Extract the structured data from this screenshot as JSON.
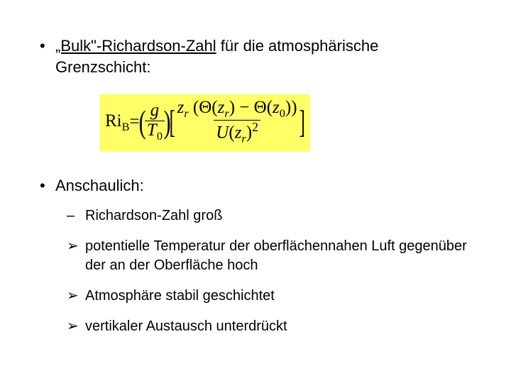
{
  "slide": {
    "background_color": "#ffffff",
    "text_color": "#000000",
    "bullet1": {
      "marker": "•",
      "underlined": "„Bulk\"-Richardson-Zahl",
      "rest": " für die atmosphärische Grenzschicht:"
    },
    "formula": {
      "background_color": "#ffff66",
      "lhs_symbol": "Ri",
      "lhs_sub": "B",
      "equals": " = ",
      "frac1_num": "g",
      "frac1_den_sym": "T",
      "frac1_den_sub": "0",
      "Theta": "Θ",
      "z": "z",
      "r": "r",
      "zero": "0",
      "minus": " − ",
      "U": "U",
      "sq": "2"
    },
    "bullet2": {
      "marker": "•",
      "text": "Anschaulich:"
    },
    "sub_dash": {
      "marker": "–",
      "text": "Richardson-Zahl groß"
    },
    "arrow_marker": "➢",
    "arrows": [
      "potentielle Temperatur der oberflächennahen Luft gegenüber der an der Oberfläche hoch",
      "Atmosphäre stabil geschichtet",
      "vertikaler Austausch unterdrückt"
    ]
  }
}
